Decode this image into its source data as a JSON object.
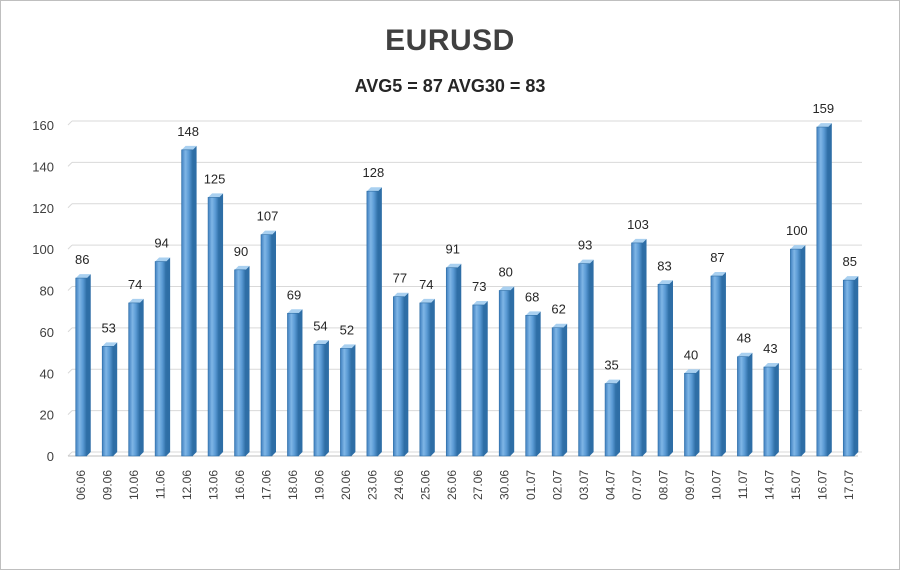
{
  "chart_data": {
    "type": "bar",
    "title": "EURUSD",
    "subtitle": "AVG5 = 87 AVG30 = 83",
    "categories": [
      "06.06",
      "09.06",
      "10.06",
      "11.06",
      "12.06",
      "13.06",
      "16.06",
      "17.06",
      "18.06",
      "19.06",
      "20.06",
      "23.06",
      "24.06",
      "25.06",
      "26.06",
      "27.06",
      "30.06",
      "01.07",
      "02.07",
      "03.07",
      "04.07",
      "07.07",
      "08.07",
      "09.07",
      "10.07",
      "11.07",
      "14.07",
      "15.07",
      "16.07",
      "17.07"
    ],
    "values": [
      86,
      53,
      74,
      94,
      148,
      125,
      90,
      107,
      69,
      54,
      52,
      128,
      77,
      74,
      91,
      73,
      80,
      68,
      62,
      93,
      35,
      103,
      83,
      40,
      87,
      48,
      43,
      100,
      159,
      85
    ],
    "ylim": [
      0,
      160
    ],
    "yticks": [
      0,
      20,
      40,
      60,
      80,
      100,
      120,
      140,
      160
    ],
    "grid": true,
    "legend": "none",
    "colors": {
      "bar_front": "#5b9bd5",
      "bar_light": "#8ec0ea",
      "bar_dark": "#2e6ea6",
      "bar_top": "#a9d0f0",
      "grid": "#d9d9d9"
    }
  }
}
